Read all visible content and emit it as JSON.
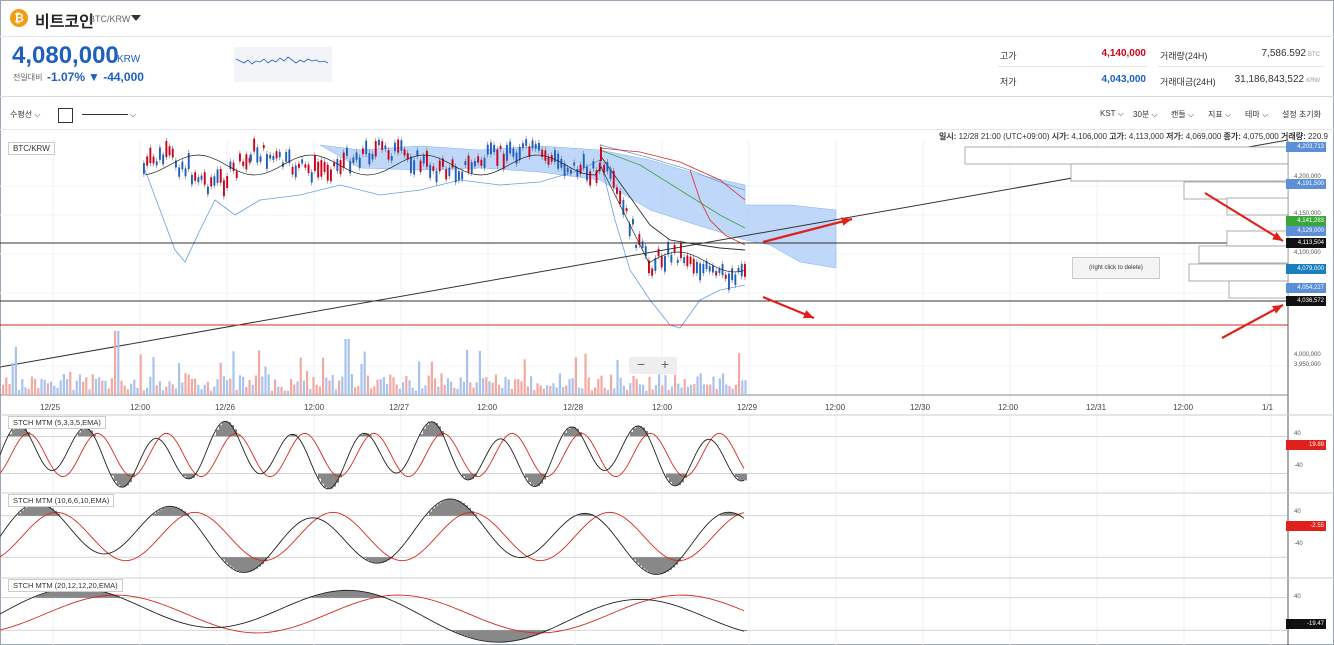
{
  "header": {
    "coin_name": "비트코인",
    "pair": "BTC/KRW",
    "coin_symbol": "₿"
  },
  "price": {
    "current": "4,080,000",
    "unit": "KRW",
    "change_label": "전일대비",
    "change_pct": "-1.07%",
    "change_abs": "▼ -44,000"
  },
  "stats": {
    "high_label": "고가",
    "high": "4,140,000",
    "low_label": "저가",
    "low": "4,043,000",
    "volume_label": "거래량(24H)",
    "volume": "7,586.592",
    "volume_unit": "BTC",
    "amount_label": "거래대금(24H)",
    "amount": "31,186,843,522",
    "amount_unit": "KRW"
  },
  "toolbar": {
    "drawing": "수평선",
    "right_items": [
      "KST",
      "30분",
      "캔들",
      "지표",
      "테마",
      "설정 초기화"
    ]
  },
  "ohlc": {
    "date_label": "일시:",
    "date": "12/28 21:00 (UTC+09:00)",
    "open_label": "시가:",
    "open": "4,106,000",
    "high_label": "고가:",
    "high": "4,113,000",
    "low_label": "저가:",
    "low": "4,069,000",
    "close_label": "종가:",
    "close": "4,075,000",
    "vol_label": "거래량:",
    "vol": "220.9"
  },
  "chart": {
    "pair_tag": "BTC/KRW",
    "delete_tip": "(right click to delete)",
    "zoom_out": "−",
    "zoom_in": "+",
    "time_labels": [
      "12/25",
      "12:00",
      "12/26",
      "12:00",
      "12/27",
      "12:00",
      "12/28",
      "12:00",
      "12/29",
      "12:00",
      "12/30",
      "12:00",
      "12/31",
      "12:00",
      "1/1"
    ],
    "price_ticks": [
      "4,200,000",
      "4,150,000",
      "4,100,000",
      "4,000,000",
      "3,950,000"
    ],
    "price_labels": [
      {
        "text": "4,203,713",
        "color": "#5b8fd8"
      },
      {
        "text": "4,191,500",
        "color": "#5b8fd8"
      },
      {
        "text": "4,141,283",
        "color": "#3aa63a"
      },
      {
        "text": "4,129,000",
        "color": "#5b8fd8"
      },
      {
        "text": "4,113,504",
        "color": "#111111"
      },
      {
        "text": "4,079,000",
        "color": "#1a7fc0"
      },
      {
        "text": "4,054,227",
        "color": "#5b8fd8"
      },
      {
        "text": "4,036,572",
        "color": "#111111"
      }
    ]
  },
  "indicators": [
    {
      "name": "STCH MTM (5,3,3,5,EMA)",
      "tick_top": "40",
      "tick_bot": "-40",
      "val_a": "19.89"
    },
    {
      "name": "STCH MTM (10,6,6,10,EMA)",
      "tick_top": "40",
      "tick_bot": "-40",
      "val_a": "-2.55"
    },
    {
      "name": "STCH MTM (20,12,12,20,EMA)",
      "tick_top": "40",
      "tick_bot": "",
      "val_a": "-19.47"
    }
  ],
  "colors": {
    "accent": "#1e5fbf",
    "down": "#1e5fbf",
    "up": "#d0021b",
    "line_red": "#d62a1e",
    "cloud": "#a9c9f5"
  }
}
